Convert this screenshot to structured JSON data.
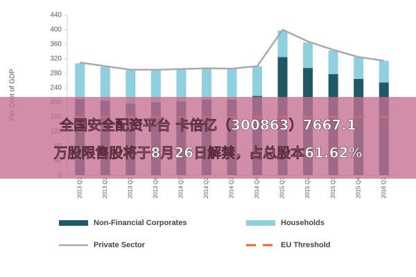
{
  "chart_data": {
    "type": "bar",
    "stacked": true,
    "y_label": "Per Cent of GDP",
    "categories": [
      "2013 Q1",
      "2013 Q2",
      "2013 Q3",
      "2013 Q4",
      "2014 Q1",
      "2014 Q2",
      "2014 Q3",
      "2014 Q4",
      "2015 Q1",
      "2015 Q2",
      "2015 Q3",
      "2015 Q4",
      "2016 Q1"
    ],
    "series": [
      {
        "name": "Non-Financial Corporates",
        "type": "bar",
        "color": "#1f5866",
        "values": [
          210,
          205,
          197,
          200,
          203,
          208,
          208,
          218,
          325,
          295,
          278,
          265,
          255
        ]
      },
      {
        "name": "Households",
        "type": "bar",
        "color": "#8fd0e0",
        "values": [
          98,
          93,
          91,
          90,
          87,
          84,
          84,
          82,
          73,
          70,
          65,
          60,
          60
        ]
      },
      {
        "name": "Private Sector",
        "type": "line",
        "color": "#a9a9a9",
        "values": [
          310,
          300,
          290,
          290,
          292,
          294,
          293,
          300,
          400,
          368,
          345,
          325,
          315
        ]
      },
      {
        "name": "EU Threshold",
        "type": "dash",
        "color": "#e8622a",
        "values": [
          160,
          160,
          160,
          160,
          160,
          160,
          160,
          160,
          160,
          160,
          160,
          160,
          160
        ]
      }
    ],
    "ylim": [
      0,
      440
    ],
    "yticks": [
      0,
      40,
      80,
      120,
      160,
      200,
      240,
      280,
      320,
      360,
      400,
      440
    ],
    "grid": false
  },
  "banner": [
    "全国安全配资平台 卡倍亿（300863）7667.1",
    "万股限售股将于8月26日解禁，占总股本61.62%"
  ]
}
